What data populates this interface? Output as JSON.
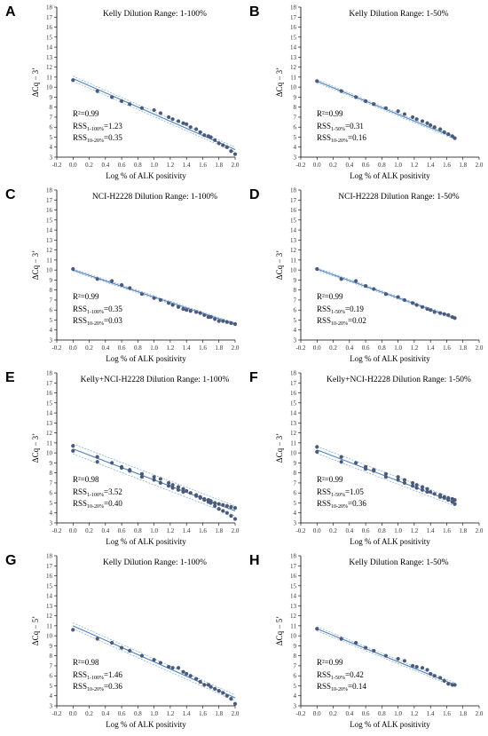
{
  "figure": {
    "colors": {
      "point": "#4a5a78",
      "line": "#4f81bd",
      "band": "#7ea6d8",
      "axis": "#000000"
    }
  },
  "chart_data": [
    {
      "panel": "A",
      "type": "scatter",
      "title": "Kelly Dilution Range: 1-100%",
      "xlabel": "Log % of ALK positivity",
      "ylabel": "ΔCq − 3’",
      "xlim": [
        -0.2,
        2.0
      ],
      "ylim": [
        3,
        18
      ],
      "xticks": [
        "-0.2",
        "0.0",
        "0.2",
        "0.4",
        "0.6",
        "0.8",
        "1.0",
        "1.2",
        "1.4",
        "1.6",
        "1.8",
        "2.0"
      ],
      "yticks": [
        "3",
        "4",
        "5",
        "6",
        "7",
        "8",
        "9",
        "10",
        "11",
        "12",
        "13",
        "14",
        "15",
        "16",
        "17",
        "18"
      ],
      "stats": {
        "r2": "R²=0.99",
        "rss_a": "RSS",
        "rss_a_sub": "1-100%",
        "rss_a_val": "=1.23",
        "rss_b": "RSS",
        "rss_b_sub": "10-20%",
        "rss_b_val": "=0.35"
      },
      "fit": {
        "x": [
          0.0,
          2.0
        ],
        "y": [
          10.85,
          3.75
        ]
      },
      "band_offset": 0.25,
      "x": [
        0.0,
        0.3,
        0.48,
        0.6,
        0.7,
        0.85,
        1.0,
        1.08,
        1.18,
        1.23,
        1.3,
        1.36,
        1.4,
        1.45,
        1.52,
        1.57,
        1.62,
        1.67,
        1.7,
        1.75,
        1.8,
        1.85,
        1.9,
        1.95,
        2.0
      ],
      "y": [
        10.7,
        9.6,
        9.0,
        8.6,
        8.3,
        7.9,
        7.7,
        7.4,
        7.0,
        6.8,
        6.6,
        6.4,
        6.3,
        6.0,
        5.8,
        5.5,
        5.2,
        5.1,
        5.0,
        4.7,
        4.4,
        4.2,
        4.0,
        3.6,
        3.3
      ]
    },
    {
      "panel": "B",
      "type": "scatter",
      "title": "Kelly Dilution Range: 1-50%",
      "xlabel": "Log % of ALK positivity",
      "ylabel": "ΔCq − 3’",
      "xlim": [
        -0.2,
        2.0
      ],
      "ylim": [
        3,
        18
      ],
      "xticks": [
        "-0.2",
        "0.0",
        "0.2",
        "0.4",
        "0.6",
        "0.8",
        "1.0",
        "1.2",
        "1.4",
        "1.6",
        "1.8",
        "2.0"
      ],
      "yticks": [
        "3",
        "4",
        "5",
        "6",
        "7",
        "8",
        "9",
        "10",
        "11",
        "12",
        "13",
        "14",
        "15",
        "16",
        "17",
        "18"
      ],
      "stats": {
        "r2": "R²=0.99",
        "rss_a": "RSS",
        "rss_a_sub": "1-50%",
        "rss_a_val": "=0.31",
        "rss_b": "RSS",
        "rss_b_sub": "10-20%",
        "rss_b_val": "=0.16"
      },
      "fit": {
        "x": [
          0.0,
          1.7
        ],
        "y": [
          10.6,
          4.95
        ]
      },
      "band_offset": 0.15,
      "x": [
        0.0,
        0.3,
        0.48,
        0.6,
        0.7,
        0.85,
        1.0,
        1.08,
        1.18,
        1.23,
        1.3,
        1.36,
        1.4,
        1.45,
        1.52,
        1.57,
        1.62,
        1.67,
        1.7
      ],
      "y": [
        10.6,
        9.6,
        9.0,
        8.6,
        8.3,
        7.9,
        7.6,
        7.3,
        7.0,
        6.8,
        6.6,
        6.4,
        6.2,
        6.0,
        5.8,
        5.5,
        5.3,
        5.1,
        4.9
      ]
    },
    {
      "panel": "C",
      "type": "scatter",
      "title": "NCI-H2228 Dilution Range: 1-100%",
      "xlabel": "Log % of ALK positivity",
      "ylabel": "ΔCq − 3’",
      "xlim": [
        -0.2,
        2.0
      ],
      "ylim": [
        3,
        18
      ],
      "xticks": [
        "-0.2",
        "0.0",
        "0.2",
        "0.4",
        "0.6",
        "0.8",
        "1.0",
        "1.2",
        "1.4",
        "1.6",
        "1.8",
        "2.0"
      ],
      "yticks": [
        "3",
        "4",
        "5",
        "6",
        "7",
        "8",
        "9",
        "10",
        "11",
        "12",
        "13",
        "14",
        "15",
        "16",
        "17",
        "18"
      ],
      "stats": {
        "r2": "R²=0.99",
        "rss_a": "RSS",
        "rss_a_sub": "1-100%",
        "rss_a_val": "=0.35",
        "rss_b": "RSS",
        "rss_b_sub": "10-20%",
        "rss_b_val": "=0.03"
      },
      "fit": {
        "x": [
          0.0,
          2.0
        ],
        "y": [
          10.0,
          4.6
        ]
      },
      "band_offset": 0.12,
      "x": [
        0.0,
        0.3,
        0.48,
        0.6,
        0.7,
        0.85,
        1.0,
        1.08,
        1.18,
        1.23,
        1.3,
        1.36,
        1.4,
        1.45,
        1.52,
        1.57,
        1.62,
        1.67,
        1.7,
        1.75,
        1.8,
        1.85,
        1.9,
        1.95,
        2.0
      ],
      "y": [
        10.1,
        9.1,
        8.9,
        8.5,
        8.2,
        7.6,
        7.2,
        7.0,
        6.7,
        6.5,
        6.3,
        6.1,
        6.0,
        5.9,
        5.8,
        5.7,
        5.5,
        5.3,
        5.3,
        5.1,
        4.9,
        4.9,
        4.8,
        4.7,
        4.6
      ]
    },
    {
      "panel": "D",
      "type": "scatter",
      "title": "NCI-H2228 Dilution Range: 1-50%",
      "xlabel": "Log % of ALK positivity",
      "ylabel": "ΔCq − 3’",
      "xlim": [
        -0.2,
        2.0
      ],
      "ylim": [
        3,
        18
      ],
      "xticks": [
        "-0.2",
        "0.0",
        "0.2",
        "0.4",
        "0.6",
        "0.8",
        "1.0",
        "1.2",
        "1.4",
        "1.6",
        "1.8",
        "2.0"
      ],
      "yticks": [
        "3",
        "4",
        "5",
        "6",
        "7",
        "8",
        "9",
        "10",
        "11",
        "12",
        "13",
        "14",
        "15",
        "16",
        "17",
        "18"
      ],
      "stats": {
        "r2": "R²=0.99",
        "rss_a": "RSS",
        "rss_a_sub": "1-50%",
        "rss_a_val": "=0.19",
        "rss_b": "RSS",
        "rss_b_sub": "10-20%",
        "rss_b_val": "=0.02"
      },
      "fit": {
        "x": [
          0.0,
          1.7
        ],
        "y": [
          10.1,
          5.2
        ]
      },
      "band_offset": 0.12,
      "x": [
        0.0,
        0.3,
        0.48,
        0.6,
        0.7,
        0.85,
        1.0,
        1.08,
        1.18,
        1.23,
        1.3,
        1.36,
        1.4,
        1.45,
        1.52,
        1.57,
        1.62,
        1.67,
        1.7
      ],
      "y": [
        10.1,
        9.1,
        8.9,
        8.4,
        8.1,
        7.6,
        7.3,
        7.0,
        6.7,
        6.5,
        6.3,
        6.1,
        6.0,
        5.8,
        5.7,
        5.6,
        5.5,
        5.3,
        5.2
      ]
    },
    {
      "panel": "E",
      "type": "scatter",
      "title": "Kelly+NCI-H2228 Dilution Range: 1-100%",
      "xlabel": "Log % of ALK positivity",
      "ylabel": "ΔCq − 3’",
      "xlim": [
        -0.2,
        2.0
      ],
      "ylim": [
        3,
        18
      ],
      "xticks": [
        "-0.2",
        "0.0",
        "0.2",
        "0.4",
        "0.6",
        "0.8",
        "1.0",
        "1.2",
        "1.4",
        "1.6",
        "1.8",
        "2.0"
      ],
      "yticks": [
        "3",
        "4",
        "5",
        "6",
        "7",
        "8",
        "9",
        "10",
        "11",
        "12",
        "13",
        "14",
        "15",
        "16",
        "17",
        "18"
      ],
      "stats": {
        "r2": "R²=0.98",
        "rss_a": "RSS",
        "rss_a_sub": "1-100%",
        "rss_a_val": "=3.52",
        "rss_b": "RSS",
        "rss_b_sub": "10-20%",
        "rss_b_val": "=0.40"
      },
      "fit": {
        "x": [
          0.0,
          2.0
        ],
        "y": [
          10.4,
          4.2
        ]
      },
      "band_offset": 0.5,
      "x": [
        0.0,
        0.0,
        0.3,
        0.3,
        0.48,
        0.6,
        0.6,
        0.7,
        0.7,
        0.85,
        0.85,
        1.0,
        1.0,
        1.08,
        1.08,
        1.18,
        1.18,
        1.23,
        1.23,
        1.3,
        1.3,
        1.36,
        1.36,
        1.4,
        1.45,
        1.52,
        1.52,
        1.57,
        1.57,
        1.62,
        1.62,
        1.67,
        1.67,
        1.7,
        1.7,
        1.75,
        1.75,
        1.8,
        1.8,
        1.85,
        1.85,
        1.9,
        1.9,
        1.95,
        1.95,
        2.0,
        2.0
      ],
      "y": [
        10.7,
        10.2,
        9.6,
        9.1,
        9.0,
        8.6,
        8.5,
        8.3,
        8.2,
        7.9,
        7.6,
        7.6,
        7.3,
        7.4,
        7.0,
        7.0,
        6.7,
        6.8,
        6.5,
        6.6,
        6.3,
        6.4,
        6.1,
        6.2,
        6.0,
        5.8,
        5.7,
        5.5,
        5.6,
        5.3,
        5.4,
        5.1,
        5.3,
        5.0,
        5.2,
        4.7,
        5.0,
        4.4,
        4.9,
        4.2,
        4.8,
        4.0,
        4.7,
        3.7,
        4.6,
        3.4,
        4.5
      ]
    },
    {
      "panel": "F",
      "type": "scatter",
      "title": "Kelly+NCI-H2228 Dilution Range: 1-50%",
      "xlabel": "Log % of ALK positivity",
      "ylabel": "ΔCq − 3’",
      "xlim": [
        -0.2,
        2.0
      ],
      "ylim": [
        3,
        18
      ],
      "xticks": [
        "-0.2",
        "0.0",
        "0.2",
        "0.4",
        "0.6",
        "0.8",
        "1.0",
        "1.2",
        "1.4",
        "1.6",
        "1.8",
        "2.0"
      ],
      "yticks": [
        "3",
        "4",
        "5",
        "6",
        "7",
        "8",
        "9",
        "10",
        "11",
        "12",
        "13",
        "14",
        "15",
        "16",
        "17",
        "18"
      ],
      "stats": {
        "r2": "R²=0.99",
        "rss_a": "RSS",
        "rss_a_sub": "1-50%",
        "rss_a_val": "=1.05",
        "rss_b": "RSS",
        "rss_b_sub": "10-20%",
        "rss_b_val": "=0.36"
      },
      "fit": {
        "x": [
          0.0,
          1.7
        ],
        "y": [
          10.3,
          5.05
        ]
      },
      "band_offset": 0.35,
      "x": [
        0.0,
        0.0,
        0.3,
        0.3,
        0.48,
        0.6,
        0.6,
        0.7,
        0.7,
        0.85,
        0.85,
        1.0,
        1.0,
        1.08,
        1.08,
        1.18,
        1.18,
        1.23,
        1.23,
        1.3,
        1.3,
        1.36,
        1.36,
        1.4,
        1.45,
        1.52,
        1.52,
        1.57,
        1.57,
        1.62,
        1.62,
        1.67,
        1.67,
        1.7,
        1.7
      ],
      "y": [
        10.6,
        10.1,
        9.6,
        9.1,
        9.0,
        8.6,
        8.4,
        8.3,
        8.2,
        7.9,
        7.6,
        7.6,
        7.3,
        7.3,
        7.0,
        7.0,
        6.7,
        6.8,
        6.5,
        6.6,
        6.3,
        6.4,
        6.1,
        6.1,
        5.9,
        5.8,
        5.6,
        5.5,
        5.6,
        5.3,
        5.5,
        5.1,
        5.4,
        4.9,
        5.3
      ]
    },
    {
      "panel": "G",
      "type": "scatter",
      "title": "Kelly Dilution Range: 1-100%",
      "xlabel": "Log % of ALK positivity",
      "ylabel": "ΔCq − 5’",
      "xlim": [
        -0.2,
        2.0
      ],
      "ylim": [
        3,
        18
      ],
      "xticks": [
        "-0.2",
        "0.0",
        "0.2",
        "0.4",
        "0.6",
        "0.8",
        "1.0",
        "1.2",
        "1.4",
        "1.6",
        "1.8",
        "2.0"
      ],
      "yticks": [
        "3",
        "4",
        "5",
        "6",
        "7",
        "8",
        "9",
        "10",
        "11",
        "12",
        "13",
        "14",
        "15",
        "16",
        "17",
        "18"
      ],
      "stats": {
        "r2": "R²=0.98",
        "rss_a": "RSS",
        "rss_a_sub": "1-100%",
        "rss_a_val": "=1.46",
        "rss_b": "RSS",
        "rss_b_sub": "10-20%",
        "rss_b_val": "=0.36"
      },
      "fit": {
        "x": [
          0.0,
          2.0
        ],
        "y": [
          11.0,
          3.8
        ]
      },
      "band_offset": 0.3,
      "x": [
        0.0,
        0.3,
        0.48,
        0.6,
        0.7,
        0.85,
        1.0,
        1.08,
        1.18,
        1.23,
        1.3,
        1.36,
        1.4,
        1.45,
        1.52,
        1.57,
        1.62,
        1.67,
        1.7,
        1.75,
        1.8,
        1.85,
        1.9,
        1.95,
        2.0
      ],
      "y": [
        10.6,
        9.7,
        9.3,
        8.8,
        8.5,
        8.0,
        7.6,
        7.3,
        6.9,
        6.8,
        6.8,
        6.4,
        6.2,
        6.0,
        5.7,
        5.4,
        5.1,
        5.1,
        4.9,
        4.7,
        4.5,
        4.3,
        4.0,
        3.7,
        3.2
      ]
    },
    {
      "panel": "H",
      "type": "scatter",
      "title": "Kelly Dilution Range: 1-50%",
      "xlabel": "Log % of ALK positivity",
      "ylabel": "ΔCq − 5’",
      "xlim": [
        -0.2,
        2.0
      ],
      "ylim": [
        3,
        18
      ],
      "xticks": [
        "-0.2",
        "0.0",
        "0.2",
        "0.4",
        "0.6",
        "0.8",
        "1.0",
        "1.2",
        "1.4",
        "1.6",
        "1.8",
        "2.0"
      ],
      "yticks": [
        "3",
        "4",
        "5",
        "6",
        "7",
        "8",
        "9",
        "10",
        "11",
        "12",
        "13",
        "14",
        "15",
        "16",
        "17",
        "18"
      ],
      "stats": {
        "r2": "R²=0.99",
        "rss_a": "RSS",
        "rss_a_sub": "1-50%",
        "rss_a_val": "=0.42",
        "rss_b": "RSS",
        "rss_b_sub": "10-20%",
        "rss_b_val": "=0.14"
      },
      "fit": {
        "x": [
          0.0,
          1.7
        ],
        "y": [
          10.7,
          5.1
        ]
      },
      "band_offset": 0.2,
      "x": [
        0.0,
        0.3,
        0.48,
        0.6,
        0.7,
        0.85,
        1.0,
        1.08,
        1.18,
        1.23,
        1.3,
        1.36,
        1.4,
        1.45,
        1.52,
        1.57,
        1.62,
        1.67,
        1.7
      ],
      "y": [
        10.7,
        9.7,
        9.3,
        8.8,
        8.5,
        8.0,
        7.7,
        7.5,
        7.0,
        6.9,
        6.8,
        6.6,
        6.2,
        6.0,
        5.8,
        5.5,
        5.2,
        5.1,
        5.1
      ]
    }
  ]
}
